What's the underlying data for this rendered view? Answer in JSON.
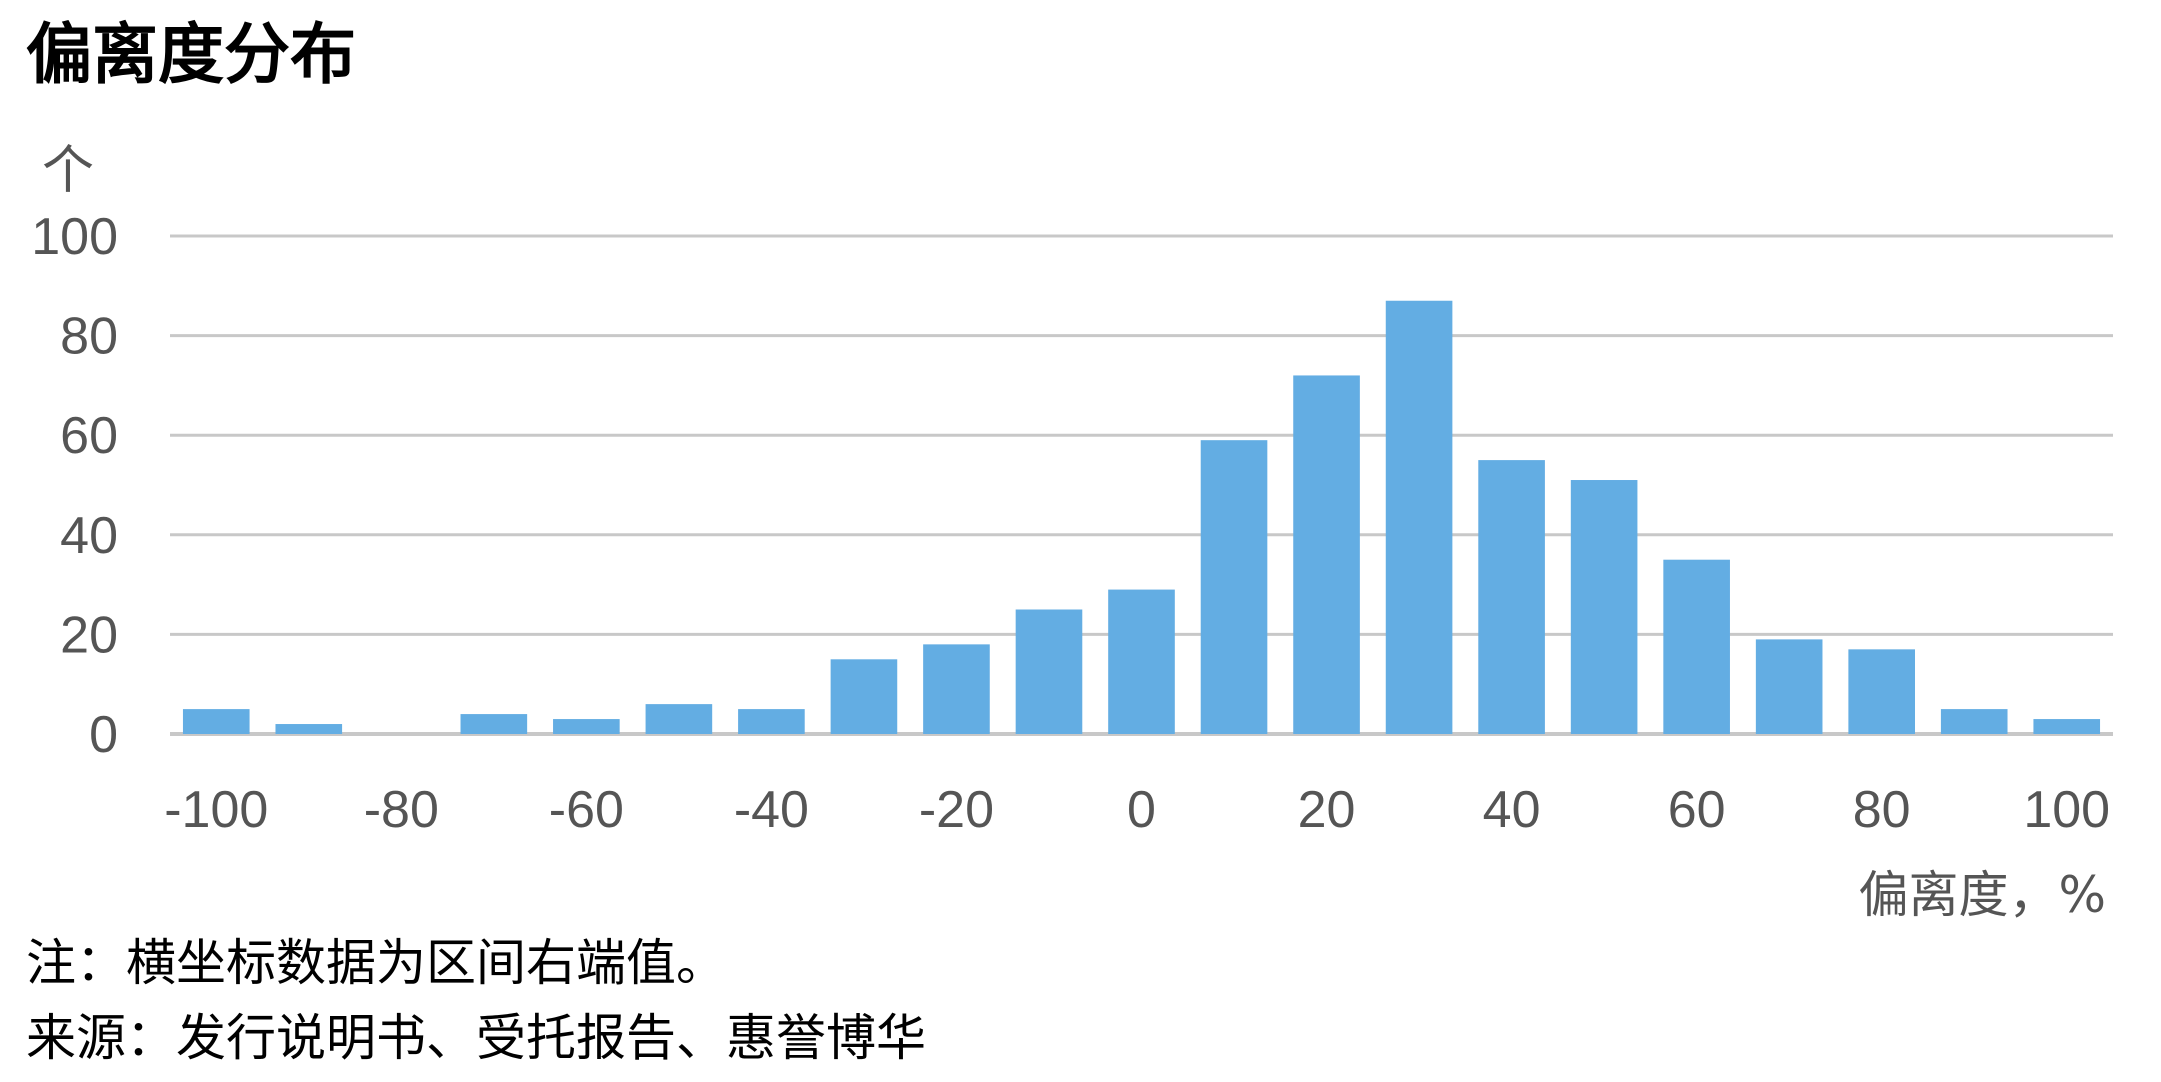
{
  "chart_data": {
    "type": "bar",
    "title": "偏离度分布",
    "ylabel": "个",
    "xlabel": "偏离度，%",
    "ylim": [
      0,
      100
    ],
    "y_ticks": [
      "0",
      "20",
      "40",
      "60",
      "80",
      "100"
    ],
    "x_tick_labels": [
      "-100",
      "-80",
      "-60",
      "-40",
      "-20",
      "0",
      "20",
      "40",
      "60",
      "80",
      "100"
    ],
    "categories": [
      "-100",
      "-90",
      "-80",
      "-70",
      "-60",
      "-50",
      "-40",
      "-30",
      "-20",
      "-10",
      "0",
      "10",
      "20",
      "30",
      "40",
      "50",
      "60",
      "70",
      "80",
      "90",
      "100"
    ],
    "values": [
      5,
      2,
      0,
      4,
      3,
      6,
      5,
      15,
      18,
      25,
      29,
      59,
      72,
      87,
      55,
      51,
      35,
      19,
      17,
      5,
      3
    ],
    "bar_color": "#63ade3",
    "grid": true,
    "legend": "none"
  },
  "notes": {
    "note": "注：横坐标数据为区间右端值。",
    "source": "来源：发行说明书、受托报告、惠誉博华"
  }
}
